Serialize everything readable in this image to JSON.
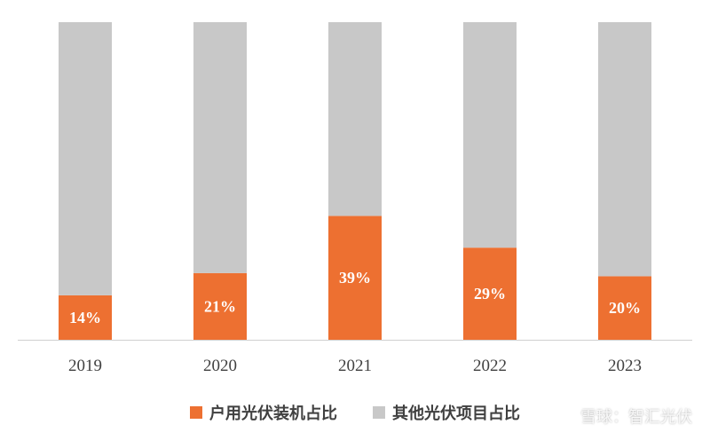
{
  "chart_data": {
    "type": "bar",
    "stacked": true,
    "percent_stacked": true,
    "categories": [
      "2019",
      "2020",
      "2021",
      "2022",
      "2023"
    ],
    "series": [
      {
        "name": "户用光伏装机占比",
        "values": [
          14,
          21,
          39,
          29,
          20
        ],
        "color": "#ed7031",
        "data_labels": [
          "14%",
          "21%",
          "39%",
          "29%",
          "20%"
        ]
      },
      {
        "name": "其他光伏项目占比",
        "values": [
          86,
          79,
          61,
          71,
          80
        ],
        "color": "#c8c8c8"
      }
    ],
    "title": "",
    "xlabel": "",
    "ylabel": "",
    "ylim": [
      0,
      100
    ],
    "grid": false,
    "legend": "bottom"
  },
  "watermark": {
    "text": "雪球：智汇光伏"
  }
}
